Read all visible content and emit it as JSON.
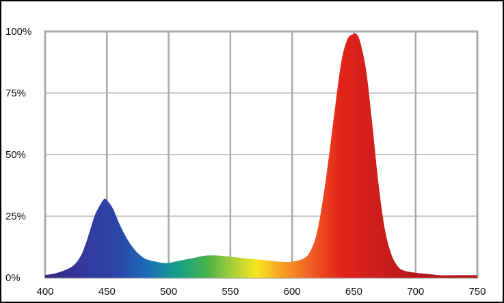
{
  "chart_data": {
    "type": "area",
    "title": "",
    "xlabel": "",
    "ylabel": "",
    "xlim": [
      400,
      750
    ],
    "ylim": [
      0,
      100
    ],
    "x_ticks": [
      400,
      450,
      500,
      550,
      600,
      650,
      700,
      750
    ],
    "x_tick_labels": [
      "400",
      "450",
      "500",
      "550",
      "600",
      "650",
      "700",
      "750"
    ],
    "y_ticks": [
      0,
      25,
      50,
      75,
      100
    ],
    "y_tick_labels": [
      "0%",
      "25%",
      "50%",
      "75%",
      "100%"
    ],
    "grid": true,
    "fill": "visible-spectrum-gradient",
    "series": [
      {
        "x": [
          400,
          410,
          420,
          425,
          430,
          435,
          440,
          445,
          448,
          450,
          455,
          460,
          465,
          470,
          475,
          480,
          485,
          490,
          495,
          500,
          510,
          520,
          530,
          540,
          550,
          560,
          570,
          580,
          590,
          600,
          610,
          615,
          620,
          625,
          630,
          635,
          640,
          645,
          650,
          652,
          655,
          660,
          665,
          670,
          675,
          680,
          685,
          690,
          700,
          710,
          720,
          730,
          740,
          750
        ],
        "y": [
          1,
          2,
          4,
          6,
          10,
          17,
          25,
          30,
          32,
          31.5,
          28,
          22,
          17,
          13,
          10,
          8,
          7,
          6.5,
          6,
          6,
          7,
          8,
          9,
          9,
          8.5,
          8,
          7.5,
          7,
          6.5,
          6.5,
          8,
          11,
          18,
          32,
          50,
          70,
          88,
          97,
          99,
          99,
          96,
          84,
          62,
          38,
          20,
          10,
          5,
          3,
          2,
          1.5,
          1,
          1,
          1,
          1
        ]
      }
    ]
  },
  "colors": {
    "grid": "#a9a9a9",
    "frame": "#000000",
    "axis_text": "#111111",
    "spectrum_stops": [
      "#3a2688",
      "#34389b",
      "#2947a8",
      "#1b6fb8",
      "#16a087",
      "#4bb448",
      "#9fcd3a",
      "#f5e61e",
      "#f7a823",
      "#f15a24",
      "#e2231a",
      "#d11f1b",
      "#b5181b"
    ]
  }
}
